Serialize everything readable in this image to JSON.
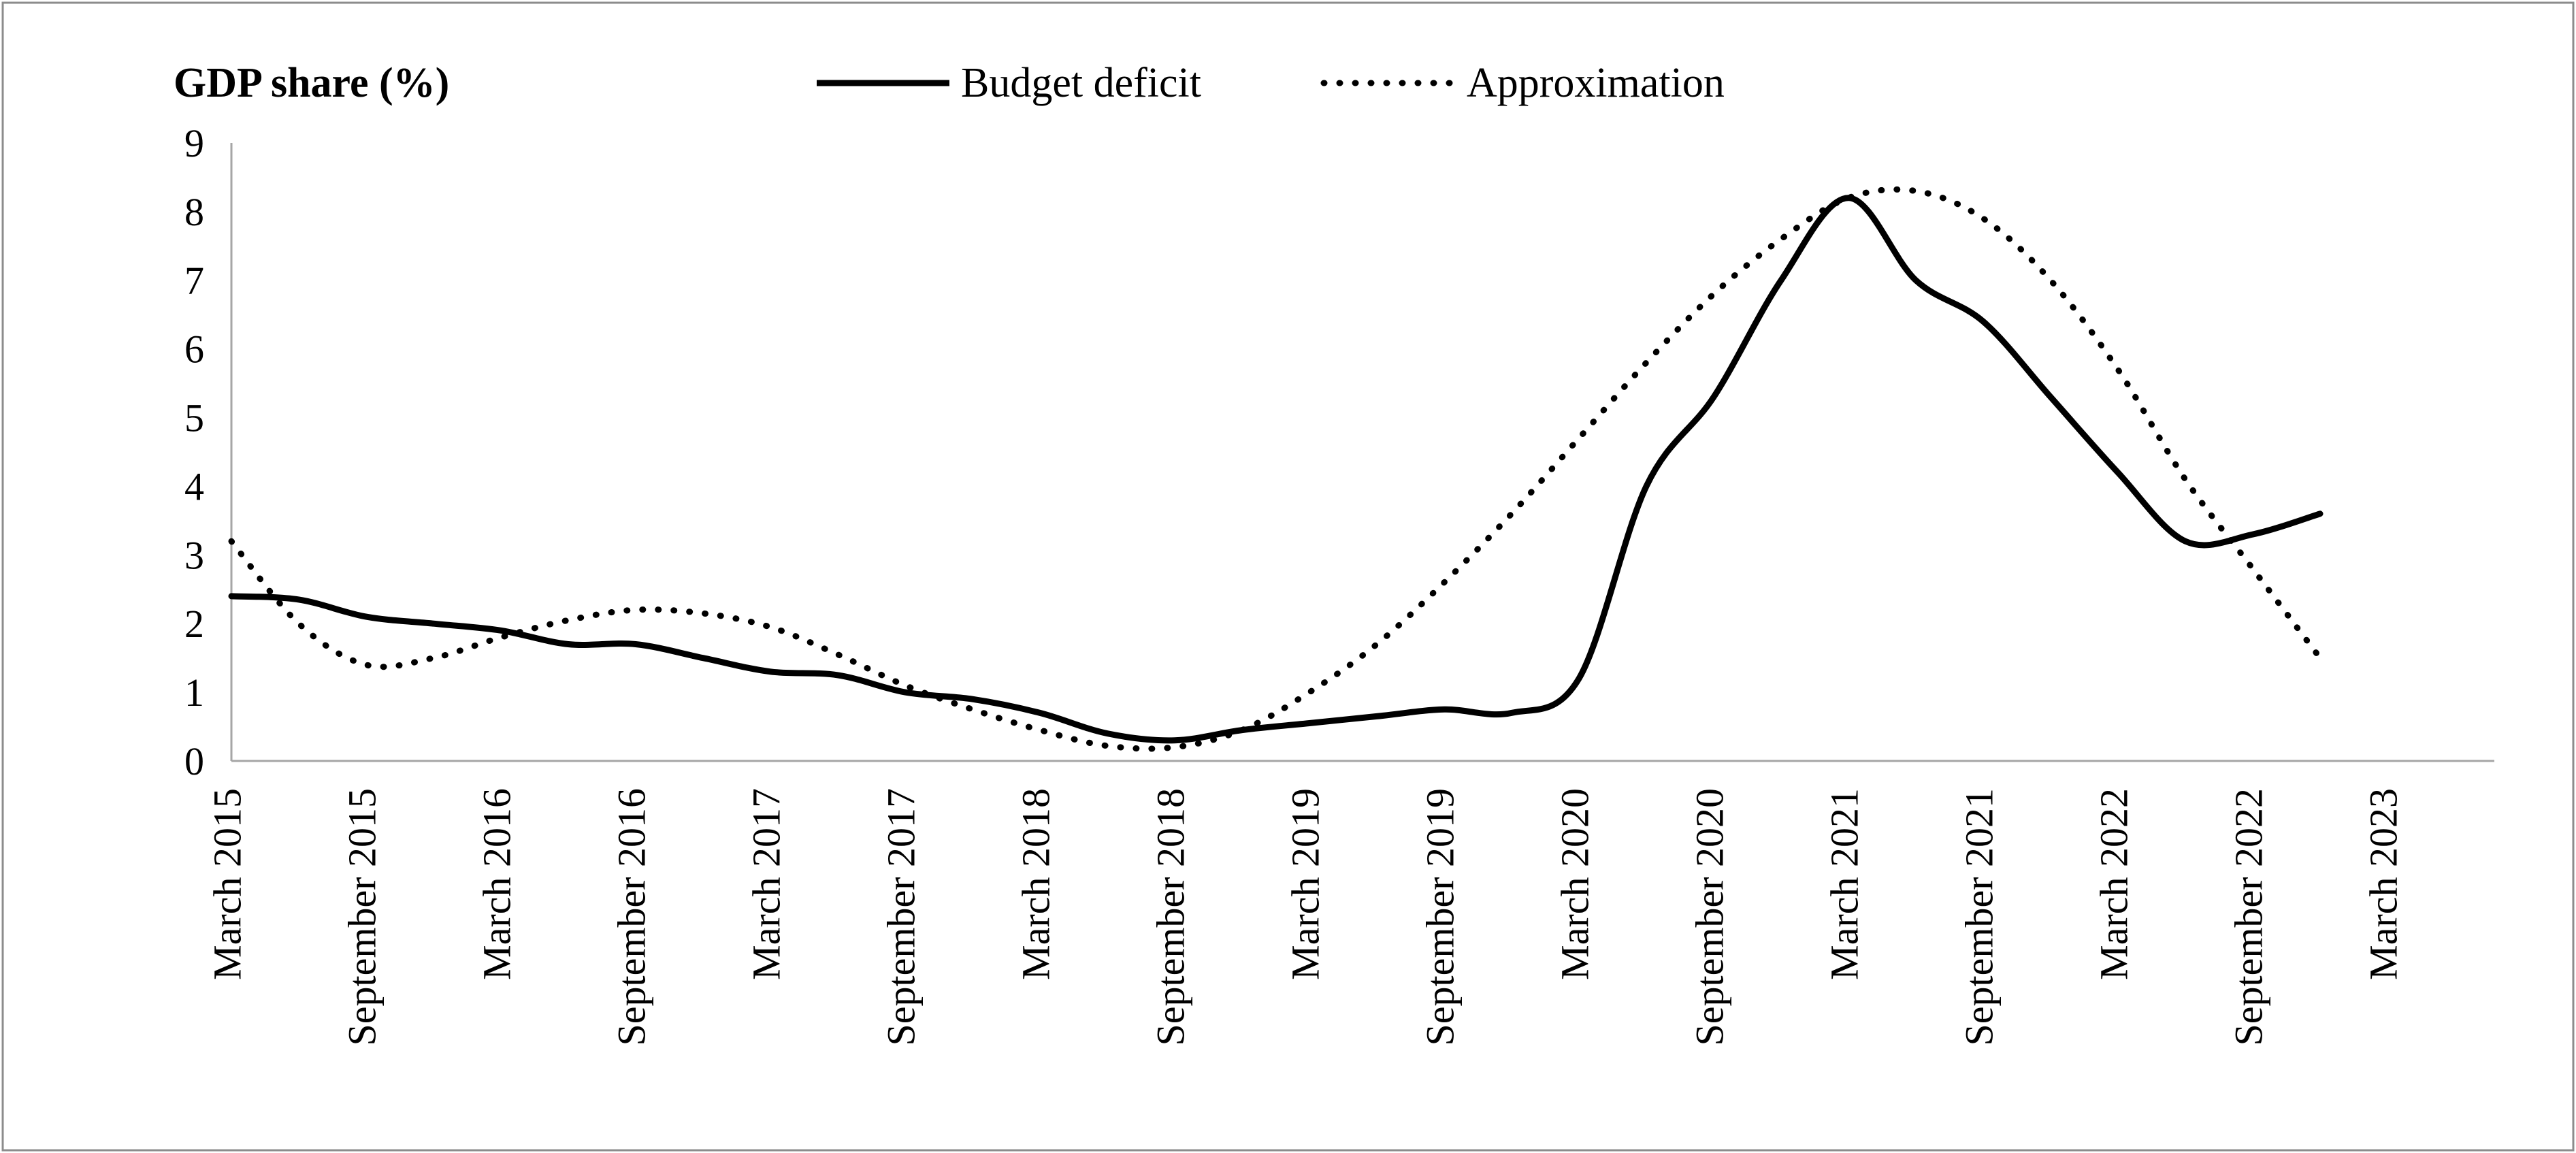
{
  "chart_data": {
    "type": "line",
    "ylabel": "GDP share (%)",
    "ylim": [
      0,
      9
    ],
    "yticks": [
      "0",
      "1",
      "2",
      "3",
      "4",
      "5",
      "6",
      "7",
      "8",
      "9"
    ],
    "xticks": [
      "March 2015",
      "September 2015",
      "March 2016",
      "September 2016",
      "March 2017",
      "September 2017",
      "March 2018",
      "September 2018",
      "March 2019",
      "September 2019",
      "March 2020",
      "September 2020",
      "March 2021",
      "September 2021",
      "March 2022",
      "September 2022",
      "March 2023"
    ],
    "legend_position": "top",
    "grid": false,
    "series": [
      {
        "name": "Budget deficit",
        "style": "solid",
        "color": "#000000",
        "points": [
          [
            "2015-03",
            2.4
          ],
          [
            "2015-06",
            2.35
          ],
          [
            "2015-09",
            2.1
          ],
          [
            "2015-12",
            2.0
          ],
          [
            "2016-03",
            1.9
          ],
          [
            "2016-06",
            1.7
          ],
          [
            "2016-09",
            1.7
          ],
          [
            "2016-12",
            1.5
          ],
          [
            "2017-03",
            1.3
          ],
          [
            "2017-06",
            1.25
          ],
          [
            "2017-09",
            1.0
          ],
          [
            "2017-12",
            0.9
          ],
          [
            "2018-03",
            0.7
          ],
          [
            "2018-06",
            0.4
          ],
          [
            "2018-09",
            0.3
          ],
          [
            "2018-12",
            0.45
          ],
          [
            "2019-03",
            0.55
          ],
          [
            "2019-06",
            0.65
          ],
          [
            "2019-09",
            0.75
          ],
          [
            "2019-12",
            0.7
          ],
          [
            "2020-03",
            1.2
          ],
          [
            "2020-06",
            4.0
          ],
          [
            "2020-09",
            5.3
          ],
          [
            "2020-12",
            7.0
          ],
          [
            "2021-03",
            8.2
          ],
          [
            "2021-06",
            7.0
          ],
          [
            "2021-09",
            6.4
          ],
          [
            "2021-12",
            5.3
          ],
          [
            "2022-03",
            4.2
          ],
          [
            "2022-06",
            3.2
          ],
          [
            "2022-09",
            3.3
          ],
          [
            "2022-12",
            3.6
          ]
        ]
      },
      {
        "name": "Approximation",
        "style": "dotted",
        "color": "#000000",
        "points": [
          [
            "2015-03",
            3.2
          ],
          [
            "2015-06",
            2.0
          ],
          [
            "2015-09",
            1.4
          ],
          [
            "2015-12",
            1.5
          ],
          [
            "2016-03",
            1.8
          ],
          [
            "2016-06",
            2.05
          ],
          [
            "2016-09",
            2.2
          ],
          [
            "2016-12",
            2.15
          ],
          [
            "2017-03",
            1.95
          ],
          [
            "2017-06",
            1.55
          ],
          [
            "2017-09",
            1.1
          ],
          [
            "2017-12",
            0.75
          ],
          [
            "2018-03",
            0.45
          ],
          [
            "2018-06",
            0.22
          ],
          [
            "2018-09",
            0.2
          ],
          [
            "2018-12",
            0.45
          ],
          [
            "2019-03",
            1.0
          ],
          [
            "2019-06",
            1.7
          ],
          [
            "2019-09",
            2.6
          ],
          [
            "2019-12",
            3.6
          ],
          [
            "2020-03",
            4.7
          ],
          [
            "2020-06",
            5.8
          ],
          [
            "2020-09",
            6.8
          ],
          [
            "2020-12",
            7.6
          ],
          [
            "2021-03",
            8.2
          ],
          [
            "2021-06",
            8.3
          ],
          [
            "2021-09",
            7.9
          ],
          [
            "2021-12",
            7.0
          ],
          [
            "2022-03",
            5.7
          ],
          [
            "2022-06",
            4.1
          ],
          [
            "2022-09",
            2.8
          ],
          [
            "2022-12",
            1.5
          ]
        ]
      }
    ]
  }
}
